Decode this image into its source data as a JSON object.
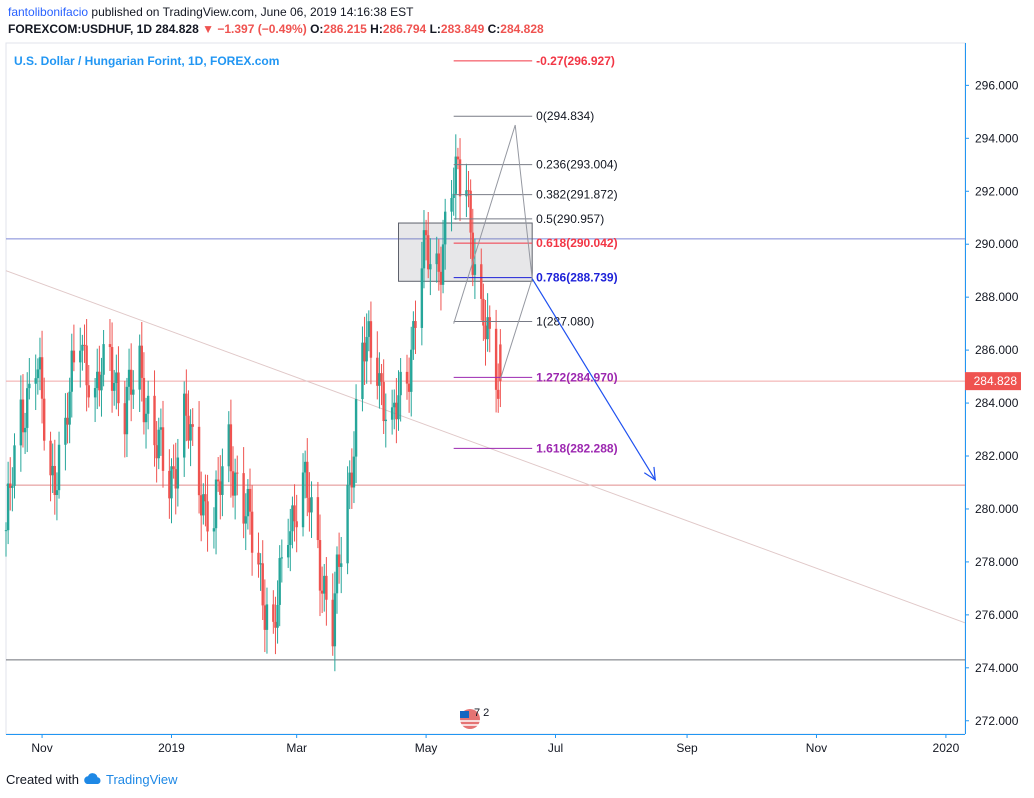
{
  "header": {
    "author": "fantolibonifacio",
    "published": "published on TradingView.com, June 06, 2019 14:16:38 EST",
    "symbol": "FOREXCOM:USDHUF, 1D",
    "price": "284.828",
    "change": "−1.397 (−0.49%)",
    "o_label": "O:",
    "o": "286.215",
    "h_label": "H:",
    "h": "286.794",
    "l_label": "L:",
    "l": "283.849",
    "c_label": "C:",
    "c": "284.828"
  },
  "footer": {
    "created_with": "Created with",
    "brand": "TradingView"
  },
  "icons": {
    "change": "triangle-down-icon",
    "brand": "tradingview-cloud-icon",
    "flag": "us-flag-icon"
  },
  "colors": {
    "up": "#26a69a",
    "down": "#ef5350",
    "axis": "#2196f3",
    "fib": "#787b86",
    "fib_red": "#f23645",
    "fib_blue": "#1e22d8",
    "fib_purple": "#9c27b0",
    "arrow": "#1e50f0",
    "price_tag": "#ef5350",
    "watermark": "#2196f3"
  },
  "chart_data": {
    "type": "candlestick",
    "title": "U.S. Dollar / Hungarian Forint, 1D, FOREX.com",
    "ylim": [
      271.5,
      297.6
    ],
    "yticks": [
      "272.000",
      "274.000",
      "276.000",
      "278.000",
      "280.000",
      "282.000",
      "284.000",
      "286.000",
      "288.000",
      "290.000",
      "292.000",
      "294.000",
      "296.000"
    ],
    "xlim": [
      "2018-10-15",
      "2020-01-10"
    ],
    "xticks": [
      {
        "date": "2018-11-01",
        "label": "Nov"
      },
      {
        "date": "2019-01-01",
        "label": "2019"
      },
      {
        "date": "2019-03-01",
        "label": "Mar"
      },
      {
        "date": "2019-05-01",
        "label": "May"
      },
      {
        "date": "2019-07-01",
        "label": "Jul"
      },
      {
        "date": "2019-09-01",
        "label": "Sep"
      },
      {
        "date": "2019-11-01",
        "label": "Nov"
      },
      {
        "date": "2020-01-01",
        "label": "2020"
      }
    ],
    "last_price": "284.828",
    "last_value": 284.828,
    "candles_close_path": [
      {
        "date": "2018-10-15",
        "close": 279.2
      },
      {
        "date": "2018-10-22",
        "close": 283.5
      },
      {
        "date": "2018-10-29",
        "close": 285.7
      },
      {
        "date": "2018-11-05",
        "close": 281.0
      },
      {
        "date": "2018-11-12",
        "close": 283.0
      },
      {
        "date": "2018-11-19",
        "close": 286.8
      },
      {
        "date": "2018-11-26",
        "close": 284.0
      },
      {
        "date": "2018-12-03",
        "close": 286.0
      },
      {
        "date": "2018-12-10",
        "close": 283.5
      },
      {
        "date": "2018-12-17",
        "close": 285.5
      },
      {
        "date": "2018-12-24",
        "close": 282.5
      },
      {
        "date": "2018-12-31",
        "close": 281.0
      },
      {
        "date": "2019-01-07",
        "close": 283.5
      },
      {
        "date": "2019-01-14",
        "close": 281.0
      },
      {
        "date": "2019-01-21",
        "close": 279.5
      },
      {
        "date": "2019-01-28",
        "close": 282.5
      },
      {
        "date": "2019-02-04",
        "close": 280.0
      },
      {
        "date": "2019-02-11",
        "close": 278.0
      },
      {
        "date": "2019-02-18",
        "close": 275.0
      },
      {
        "date": "2019-02-25",
        "close": 279.5
      },
      {
        "date": "2019-03-04",
        "close": 281.0
      },
      {
        "date": "2019-03-11",
        "close": 278.5
      },
      {
        "date": "2019-03-18",
        "close": 275.5
      },
      {
        "date": "2019-03-25",
        "close": 280.5
      },
      {
        "date": "2019-04-01",
        "close": 286.0
      },
      {
        "date": "2019-04-08",
        "close": 285.5
      },
      {
        "date": "2019-04-15",
        "close": 283.0
      },
      {
        "date": "2019-04-22",
        "close": 285.0
      },
      {
        "date": "2019-04-29",
        "close": 289.5
      },
      {
        "date": "2019-05-06",
        "close": 289.0
      },
      {
        "date": "2019-05-13",
        "close": 292.0
      },
      {
        "date": "2019-05-20",
        "close": 292.5
      },
      {
        "date": "2019-05-27",
        "close": 287.0
      },
      {
        "date": "2019-06-05",
        "close": 284.8
      }
    ],
    "hlines": [
      {
        "value": 290.2,
        "color": "#7e88d6"
      },
      {
        "value": 284.828,
        "color": "#f0a8a8"
      },
      {
        "value": 280.9,
        "color": "#e08c8c"
      },
      {
        "value": 274.3,
        "color": "#6e7079"
      }
    ],
    "trendline": {
      "from": {
        "date": "2018-10-15",
        "value": 289.0
      },
      "to": {
        "date": "2020-01-10",
        "value": 275.7
      }
    },
    "fib_x_range": [
      "2019-05-14",
      "2019-06-20"
    ],
    "fib": [
      {
        "label": "-0.27(296.927)",
        "value": 296.927,
        "color": "red"
      },
      {
        "label": "0(294.834)",
        "value": 294.834,
        "color": "gray"
      },
      {
        "label": "0.236(293.004)",
        "value": 293.004,
        "color": "gray"
      },
      {
        "label": "0.382(291.872)",
        "value": 291.872,
        "color": "gray"
      },
      {
        "label": "0.5(290.957)",
        "value": 290.957,
        "color": "gray"
      },
      {
        "label": "0.618(290.042)",
        "value": 290.042,
        "color": "red"
      },
      {
        "label": "0.786(288.739)",
        "value": 288.739,
        "color": "blue"
      },
      {
        "label": "1(287.080)",
        "value": 287.08,
        "color": "gray"
      },
      {
        "label": "1.272(284.970)",
        "value": 284.97,
        "color": "purple"
      },
      {
        "label": "1.618(282.288)",
        "value": 282.288,
        "color": "purple"
      }
    ],
    "zone": {
      "from": "2019-04-18",
      "to": "2019-06-20",
      "top": 290.8,
      "bottom": 288.6
    },
    "path_points": [
      {
        "date": "2019-05-14",
        "value": 287.0
      },
      {
        "date": "2019-06-12",
        "value": 294.5
      },
      {
        "date": "2019-06-20",
        "value": 288.7
      },
      {
        "date": "2019-06-05",
        "value": 284.9
      },
      {
        "date": "2019-06-20",
        "value": 288.7
      }
    ],
    "arrow": {
      "from": {
        "date": "2019-06-20",
        "value": 288.7
      },
      "to": {
        "date": "2019-08-17",
        "value": 281.1
      }
    },
    "watermark": "7 2"
  }
}
